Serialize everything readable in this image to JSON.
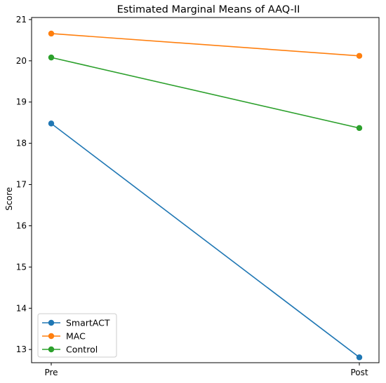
{
  "chart_data": {
    "type": "line",
    "title": "Estimated Marginal Means of AAQ-II",
    "xlabel": "",
    "ylabel": "Score",
    "categories": [
      "Pre",
      "Post"
    ],
    "ylim": [
      12.68,
      21.05
    ],
    "yticks": [
      13,
      14,
      15,
      16,
      17,
      18,
      19,
      20,
      21
    ],
    "grid": false,
    "legend": "lower-left",
    "series": [
      {
        "name": "SmartACT",
        "values": [
          18.48,
          12.81
        ],
        "color": "#1f77b4"
      },
      {
        "name": "MAC",
        "values": [
          20.66,
          20.12
        ],
        "color": "#ff7f0e"
      },
      {
        "name": "Control",
        "values": [
          20.08,
          18.37
        ],
        "color": "#2ca02c"
      }
    ]
  }
}
